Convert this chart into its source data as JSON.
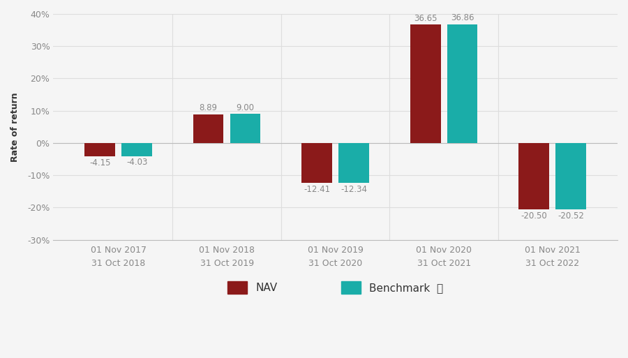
{
  "categories": [
    "01 Nov 2017\n31 Oct 2018",
    "01 Nov 2018\n31 Oct 2019",
    "01 Nov 2019\n31 Oct 2020",
    "01 Nov 2020\n31 Oct 2021",
    "01 Nov 2021\n31 Oct 2022"
  ],
  "nav_values": [
    -4.15,
    8.89,
    -12.41,
    36.65,
    -20.5
  ],
  "benchmark_values": [
    -4.03,
    9.0,
    -12.34,
    36.86,
    -20.52
  ],
  "nav_color": "#8B1A1A",
  "benchmark_color": "#1AADA8",
  "bar_width": 0.28,
  "bar_gap": 0.06,
  "ylim": [
    -30,
    40
  ],
  "yticks": [
    -30,
    -20,
    -10,
    0,
    10,
    20,
    30,
    40
  ],
  "ylabel": "Rate of return",
  "background_color": "#f5f5f5",
  "plot_bg_color": "#f5f5f5",
  "grid_color": "#dddddd",
  "label_fontsize": 8.5,
  "axis_fontsize": 9,
  "tick_color": "#888888",
  "legend_nav": "NAV",
  "legend_benchmark": "Benchmark",
  "legend_fontsize": 11
}
